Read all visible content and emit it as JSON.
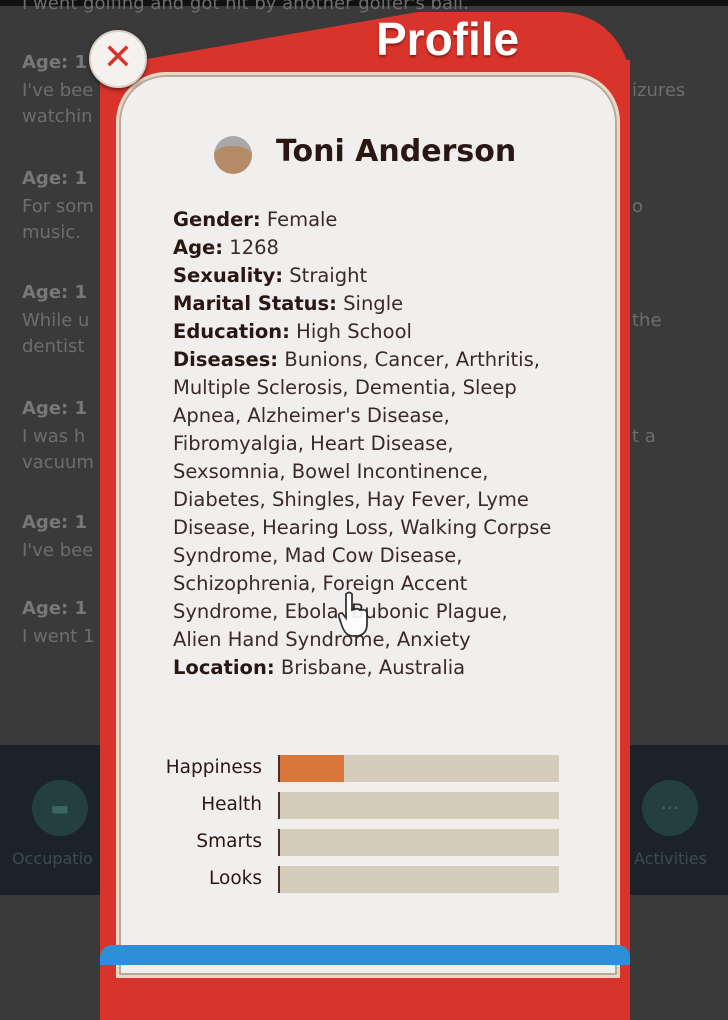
{
  "background": {
    "first_line": "I went golfing and got hit by another golfer's ball.",
    "entries": [
      {
        "age": "Age: 1",
        "left": "I've bee",
        "left2": "watchin",
        "right": "izures"
      },
      {
        "age": "Age: 1",
        "left": "For som",
        "left2": "music.",
        "right": "o"
      },
      {
        "age": "Age: 1",
        "left": "While u",
        "left2": "dentist",
        "right": "the"
      },
      {
        "age": "Age: 1",
        "left": "I was h",
        "left2": "vacuum",
        "right": "t a"
      },
      {
        "age": "Age: 1",
        "left": "I've bee",
        "left2": "",
        "right": ""
      },
      {
        "age": "Age: 1",
        "left": "I went 1",
        "left2": "",
        "right": ""
      }
    ],
    "nav": {
      "left_label": "Occupatio",
      "right_label": "Activities"
    }
  },
  "modal": {
    "title": "Profile",
    "close_icon": "close-x",
    "name": "Toni Anderson",
    "avatar_icon": "old-woman-emoji",
    "fields": [
      {
        "label": "Gender:",
        "value": "Female"
      },
      {
        "label": "Age:",
        "value": "1268"
      },
      {
        "label": "Sexuality:",
        "value": "Straight"
      },
      {
        "label": "Marital Status:",
        "value": "Single"
      },
      {
        "label": "Education:",
        "value": "High School"
      },
      {
        "label": "Diseases:",
        "value": "Bunions, Cancer, Arthritis, Multiple Sclerosis, Dementia, Sleep Apnea, Alzheimer's Disease, Fibromyalgia, Heart Disease, Sexsomnia, Bowel Incontinence, Diabetes, Shingles, Hay Fever, Lyme Disease, Hearing Loss, Walking Corpse Syndrome, Mad Cow Disease, Schizophrenia, Foreign Accent Syndrome, Ebola, Bubonic Plague, Alien Hand Syndrome, Anxiety"
      },
      {
        "label": "Location:",
        "value": "Brisbane, Australia"
      }
    ],
    "stats": [
      {
        "label": "Happiness",
        "percent": 23,
        "color": "#d9773a"
      },
      {
        "label": "Health",
        "percent": 0
      },
      {
        "label": "Smarts",
        "percent": 0
      },
      {
        "label": "Looks",
        "percent": 0
      }
    ]
  },
  "colors": {
    "modal_red": "#d9342b",
    "bar_bg": "#d5ccbc",
    "accent_blue": "#2f8fd6"
  }
}
